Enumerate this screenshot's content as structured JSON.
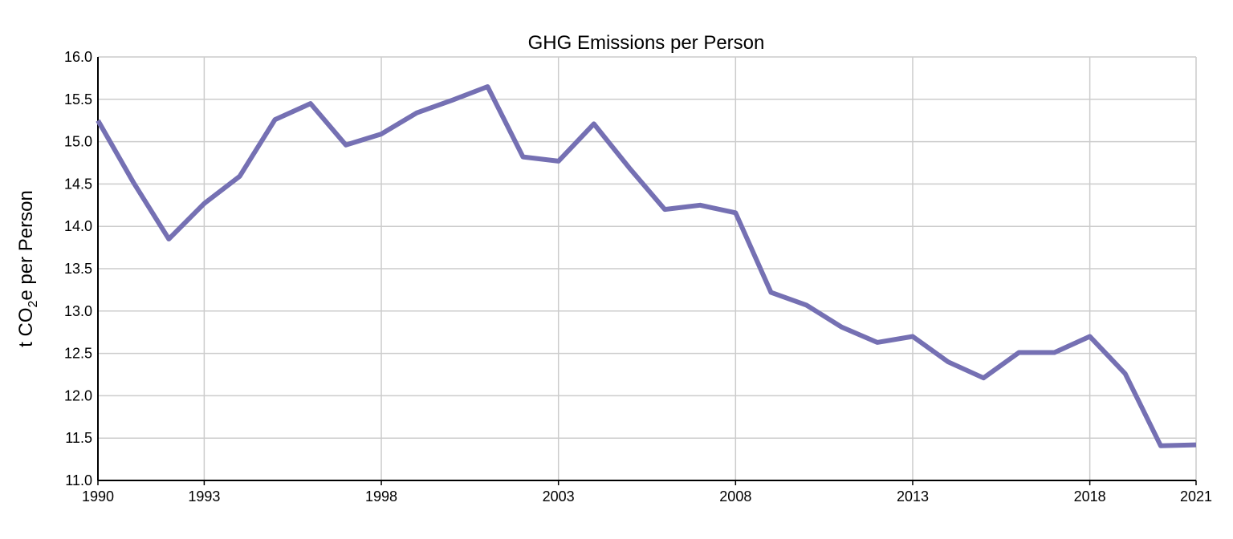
{
  "chart_data": {
    "type": "line",
    "title": "GHG Emissions per Person",
    "xlabel": "",
    "ylabel": {
      "prefix": "t CO",
      "subscript": "2",
      "suffix": "e  per Person"
    },
    "ylim": [
      11.0,
      16.0
    ],
    "xlim": [
      1990,
      2021
    ],
    "y_ticks": [
      "11.0",
      "11.5",
      "12.0",
      "12.5",
      "13.0",
      "13.5",
      "14.0",
      "14.5",
      "15.0",
      "15.5",
      "16.0"
    ],
    "x_ticks": [
      "1990",
      "1993",
      "1998",
      "2003",
      "2008",
      "2013",
      "2018",
      "2021"
    ],
    "grid": true,
    "legend": "none",
    "color": "#7570b3",
    "series": [
      {
        "x": [
          1990,
          1991,
          1992,
          1993,
          1994,
          1995,
          1996,
          1997,
          1998,
          1999,
          2000,
          2001,
          2002,
          2003,
          2004,
          2005,
          2006,
          2007,
          2008,
          2009,
          2010,
          2011,
          2012,
          2013,
          2014,
          2015,
          2016,
          2017,
          2018,
          2019,
          2020,
          2021
        ],
        "values": [
          15.25,
          14.52,
          13.85,
          14.27,
          14.59,
          15.26,
          15.45,
          14.96,
          15.09,
          15.34,
          15.49,
          15.65,
          14.82,
          14.77,
          15.21,
          14.69,
          14.2,
          14.25,
          14.16,
          13.22,
          13.07,
          12.81,
          12.63,
          12.7,
          12.4,
          12.21,
          12.51,
          12.51,
          12.7,
          12.26,
          11.41,
          11.42
        ]
      }
    ]
  }
}
